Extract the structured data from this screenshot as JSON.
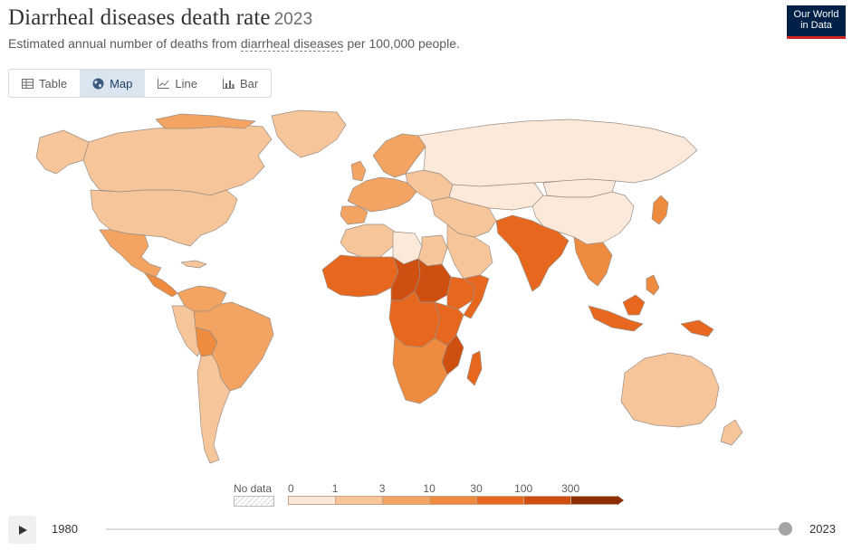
{
  "header": {
    "title": "Diarrheal diseases death rate",
    "year": "2023",
    "subtitle_pre": "Estimated annual number of deaths from ",
    "subtitle_term": "diarrheal diseases",
    "subtitle_post": " per 100,000 people.",
    "logo_line1": "Our World",
    "logo_line2": "in Data"
  },
  "tabs": [
    {
      "label": "Table",
      "icon": "table-icon"
    },
    {
      "label": "Map",
      "icon": "globe-icon",
      "active": true
    },
    {
      "label": "Line",
      "icon": "line-chart-icon"
    },
    {
      "label": "Bar",
      "icon": "bar-chart-icon"
    }
  ],
  "legend": {
    "no_data_label": "No data",
    "ticks": [
      "0",
      "1",
      "3",
      "10",
      "30",
      "100",
      "300"
    ],
    "colors": [
      "#fde9d9",
      "#f7c59a",
      "#f3a462",
      "#ee8b3f",
      "#e8671f",
      "#cf4f10",
      "#8c2f06"
    ]
  },
  "timeline": {
    "start": "1980",
    "end": "2023",
    "position": 1.0
  },
  "colors": {
    "ocean": "#ffffff",
    "border": "#9a8f86",
    "no_data": "#eeeeee"
  },
  "regions": [
    {
      "name": "Canada",
      "bin": 2
    },
    {
      "name": "United States",
      "bin": 1
    },
    {
      "name": "Greenland",
      "bin": 1
    },
    {
      "name": "Alaska",
      "bin": 1
    },
    {
      "name": "Mexico",
      "bin": 2
    },
    {
      "name": "Central America",
      "bin": 3
    },
    {
      "name": "Colombia and Venezuela",
      "bin": 2
    },
    {
      "name": "Peru and Ecuador",
      "bin": 1
    },
    {
      "name": "Bolivia",
      "bin": 3
    },
    {
      "name": "Brazil",
      "bin": 2
    },
    {
      "name": "Southern Cone",
      "bin": 1
    },
    {
      "name": "Western Europe",
      "bin": 2
    },
    {
      "name": "Scandinavia",
      "bin": 2
    },
    {
      "name": "Eastern Europe",
      "bin": 1
    },
    {
      "name": "Russia",
      "bin": 0
    },
    {
      "name": "Central Asia",
      "bin": 0
    },
    {
      "name": "China",
      "bin": 0
    },
    {
      "name": "Mongolia",
      "bin": 0
    },
    {
      "name": "Japan",
      "bin": 3
    },
    {
      "name": "Middle East",
      "bin": 1
    },
    {
      "name": "Arabian Peninsula",
      "bin": 1
    },
    {
      "name": "Maghreb",
      "bin": 1
    },
    {
      "name": "Libya",
      "bin": 0
    },
    {
      "name": "Egypt",
      "bin": 1
    },
    {
      "name": "West Africa",
      "bin": 4
    },
    {
      "name": "Niger and Nigeria",
      "bin": 5
    },
    {
      "name": "Chad and Sudan",
      "bin": 5
    },
    {
      "name": "Ethiopia",
      "bin": 4
    },
    {
      "name": "Somalia",
      "bin": 4
    },
    {
      "name": "Central Africa",
      "bin": 4
    },
    {
      "name": "East Africa",
      "bin": 4
    },
    {
      "name": "Mozambique",
      "bin": 5
    },
    {
      "name": "Southern Africa",
      "bin": 3
    },
    {
      "name": "Madagascar",
      "bin": 4
    },
    {
      "name": "India and Pakistan",
      "bin": 4
    },
    {
      "name": "Southeast Asia",
      "bin": 3
    },
    {
      "name": "Indonesia",
      "bin": 4
    },
    {
      "name": "Papua New Guinea",
      "bin": 4
    },
    {
      "name": "Australia",
      "bin": 1
    },
    {
      "name": "New Zealand",
      "bin": 1
    }
  ]
}
